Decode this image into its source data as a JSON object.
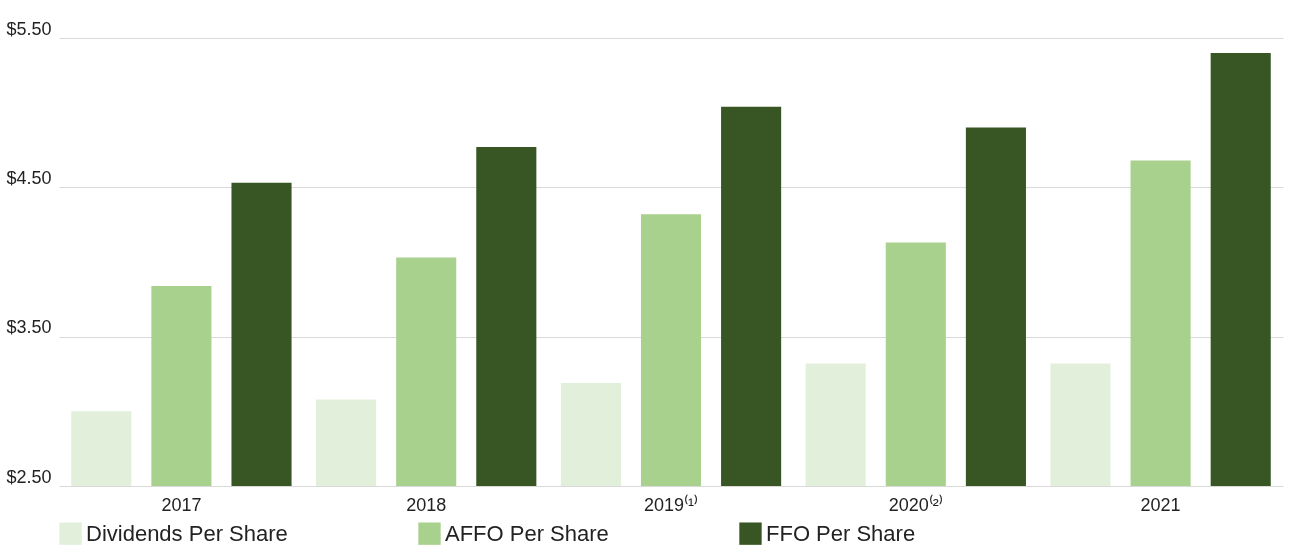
{
  "chart_data": {
    "type": "bar",
    "categories": [
      "2017",
      "2018",
      "2019⁽¹⁾",
      "2020⁽²⁾",
      "2021"
    ],
    "series": [
      {
        "name": "Dividends Per Share",
        "color": "#e2efda",
        "values": [
          3.0,
          3.08,
          3.19,
          3.32,
          3.32
        ]
      },
      {
        "name": "AFFO Per Share",
        "color": "#a9d18e",
        "values": [
          3.84,
          4.03,
          4.32,
          4.13,
          4.68
        ]
      },
      {
        "name": "FFO Per Share",
        "color": "#375623",
        "values": [
          4.53,
          4.77,
          5.04,
          4.9,
          5.4
        ]
      }
    ],
    "ylim": [
      2.5,
      5.5
    ],
    "yticks": [
      {
        "value": 2.5,
        "label": "$2.50"
      },
      {
        "value": 3.5,
        "label": "$3.50"
      },
      {
        "value": 4.5,
        "label": "$4.50"
      },
      {
        "value": 5.5,
        "label": "$5.50"
      }
    ],
    "grid": "y",
    "legend": "bottom"
  }
}
